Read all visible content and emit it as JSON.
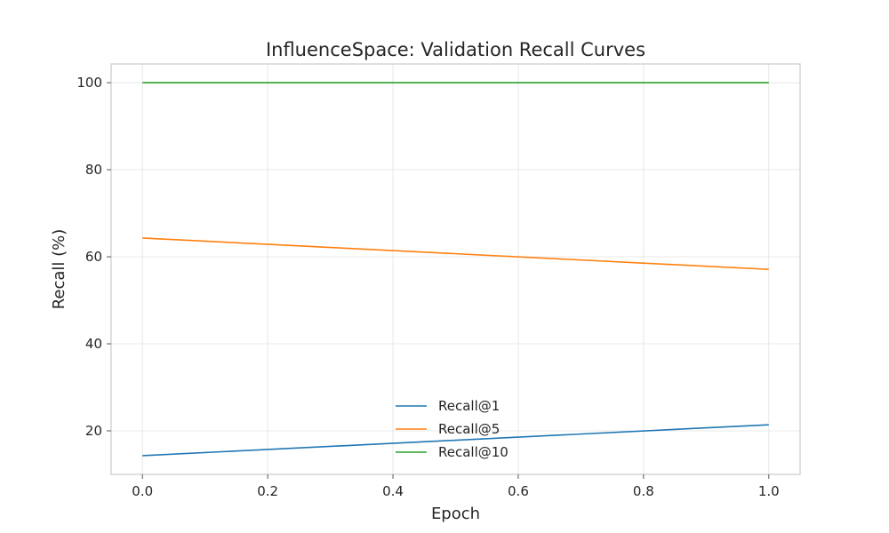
{
  "chart_data": {
    "type": "line",
    "title": "InfluenceSpace: Validation Recall Curves",
    "xlabel": "Epoch",
    "ylabel": "Recall (%)",
    "xlim": [
      -0.05,
      1.05
    ],
    "ylim": [
      10,
      104.3
    ],
    "x_ticks": [
      0.0,
      0.2,
      0.4,
      0.6,
      0.8,
      1.0
    ],
    "x_tick_labels": [
      "0.0",
      "0.2",
      "0.4",
      "0.6",
      "0.8",
      "1.0"
    ],
    "y_ticks": [
      20,
      40,
      60,
      80,
      100
    ],
    "y_tick_labels": [
      "20",
      "40",
      "60",
      "80",
      "100"
    ],
    "grid": true,
    "legend_position": "lower-center",
    "series": [
      {
        "name": "Recall@1",
        "color": "#1f77b4",
        "x": [
          0.0,
          1.0
        ],
        "y": [
          14.3,
          21.4
        ]
      },
      {
        "name": "Recall@5",
        "color": "#ff7f0e",
        "x": [
          0.0,
          1.0
        ],
        "y": [
          64.3,
          57.1
        ]
      },
      {
        "name": "Recall@10",
        "color": "#2ca02c",
        "x": [
          0.0,
          1.0
        ],
        "y": [
          100.0,
          100.0
        ]
      }
    ]
  }
}
